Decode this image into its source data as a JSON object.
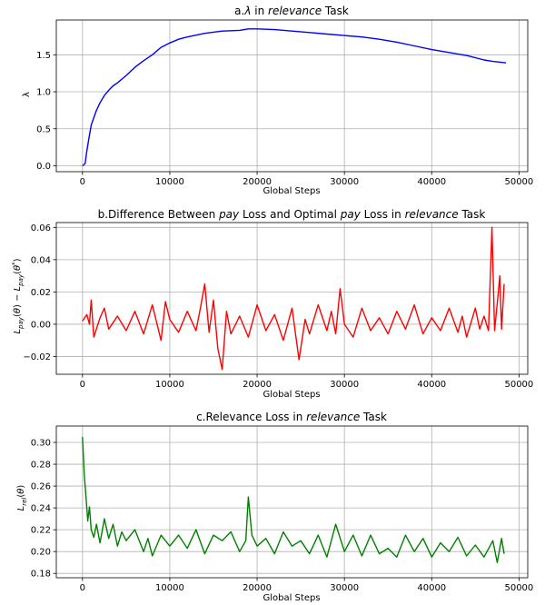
{
  "chart_data": [
    {
      "type": "line",
      "title": {
        "prefix": "a.",
        "symbol": "λ",
        "middle": " in ",
        "task": "relevance",
        "suffix": " Task"
      },
      "xlabel": "Global Steps",
      "ylabel": "λ",
      "xlim": [
        -3000,
        51000
      ],
      "ylim": [
        -0.08,
        1.97
      ],
      "xticks": [
        0,
        10000,
        20000,
        30000,
        40000,
        50000
      ],
      "yticks": [
        0.0,
        0.5,
        1.0,
        1.5
      ],
      "ytick_decimals": 1,
      "grid": true,
      "color": "#0000ff",
      "x": [
        0,
        300,
        500,
        700,
        1000,
        1300,
        1600,
        2000,
        2500,
        3000,
        3500,
        4000,
        5000,
        6000,
        7000,
        8000,
        9000,
        10000,
        11000,
        12000,
        14000,
        16000,
        18000,
        19000,
        20000,
        22000,
        24000,
        26000,
        28000,
        30000,
        32000,
        34000,
        36000,
        38000,
        40000,
        42000,
        44000,
        46000,
        47000,
        48500
      ],
      "y": [
        0.0,
        0.03,
        0.2,
        0.35,
        0.55,
        0.65,
        0.75,
        0.85,
        0.95,
        1.02,
        1.08,
        1.12,
        1.22,
        1.33,
        1.42,
        1.5,
        1.6,
        1.66,
        1.71,
        1.74,
        1.79,
        1.82,
        1.83,
        1.85,
        1.85,
        1.84,
        1.82,
        1.8,
        1.78,
        1.76,
        1.74,
        1.71,
        1.67,
        1.62,
        1.57,
        1.53,
        1.49,
        1.43,
        1.41,
        1.39
      ]
    },
    {
      "type": "line",
      "title": {
        "prefix": "b.Difference Between ",
        "pay1": "pay",
        "middle1": " Loss and Optimal ",
        "pay2": "pay",
        "middle2": " Loss in ",
        "task": "relevance",
        "suffix": " Task"
      },
      "xlabel": "Global Steps",
      "ylabel": "L_pay(θ) − L_pay(θ*)",
      "xlim": [
        -3000,
        51000
      ],
      "ylim": [
        -0.031,
        0.063
      ],
      "xticks": [
        0,
        10000,
        20000,
        30000,
        40000,
        50000
      ],
      "yticks": [
        -0.02,
        0.0,
        0.02,
        0.04,
        0.06
      ],
      "ytick_decimals": 2,
      "grid": true,
      "color": "#ff0000",
      "x": [
        0,
        500,
        800,
        1000,
        1300,
        2000,
        2500,
        3000,
        4000,
        5000,
        6000,
        7000,
        8000,
        9000,
        9500,
        10000,
        11000,
        12000,
        13000,
        13500,
        14000,
        14500,
        15000,
        15500,
        16000,
        16500,
        17000,
        18000,
        19000,
        20000,
        21000,
        22000,
        23000,
        24000,
        24800,
        25500,
        26000,
        27000,
        28000,
        28500,
        29000,
        29500,
        30000,
        31000,
        32000,
        33000,
        34000,
        35000,
        36000,
        37000,
        38000,
        39000,
        40000,
        41000,
        42000,
        43000,
        43500,
        44000,
        45000,
        45500,
        46000,
        46500,
        46900,
        47200,
        47600,
        47800,
        48000,
        48300
      ],
      "y": [
        0.002,
        0.006,
        0.0,
        0.015,
        -0.008,
        0.004,
        0.01,
        -0.003,
        0.005,
        -0.004,
        0.008,
        -0.006,
        0.012,
        -0.01,
        0.014,
        0.003,
        -0.005,
        0.008,
        -0.004,
        0.01,
        0.025,
        -0.005,
        0.015,
        -0.015,
        -0.028,
        0.008,
        -0.006,
        0.005,
        -0.008,
        0.012,
        -0.004,
        0.006,
        -0.01,
        0.01,
        -0.022,
        0.003,
        -0.006,
        0.012,
        -0.004,
        0.008,
        -0.006,
        0.022,
        0.0,
        -0.008,
        0.01,
        -0.004,
        0.004,
        -0.006,
        0.008,
        -0.003,
        0.012,
        -0.006,
        0.004,
        -0.004,
        0.01,
        -0.005,
        0.005,
        -0.008,
        0.01,
        -0.003,
        0.005,
        -0.004,
        0.06,
        -0.004,
        0.018,
        0.03,
        -0.003,
        0.025
      ]
    },
    {
      "type": "line",
      "title": {
        "prefix": "c.Relevance Loss in ",
        "task": "relevance",
        "suffix": " Task"
      },
      "xlabel": "Global Steps",
      "ylabel": "L_rel(θ)",
      "xlim": [
        -3000,
        51000
      ],
      "ylim": [
        0.176,
        0.315
      ],
      "xticks": [
        0,
        10000,
        20000,
        30000,
        40000,
        50000
      ],
      "yticks": [
        0.18,
        0.2,
        0.22,
        0.24,
        0.26,
        0.28,
        0.3
      ],
      "ytick_decimals": 2,
      "grid": true,
      "color": "#008000",
      "x": [
        0,
        200,
        400,
        600,
        800,
        1000,
        1300,
        1600,
        2000,
        2500,
        3000,
        3500,
        4000,
        4500,
        5000,
        6000,
        7000,
        7500,
        8000,
        9000,
        10000,
        11000,
        12000,
        13000,
        14000,
        15000,
        16000,
        17000,
        18000,
        18700,
        19000,
        19400,
        20000,
        21000,
        22000,
        23000,
        24000,
        25000,
        26000,
        27000,
        28000,
        29000,
        30000,
        31000,
        32000,
        33000,
        34000,
        35000,
        36000,
        37000,
        38000,
        39000,
        40000,
        41000,
        42000,
        43000,
        44000,
        45000,
        46000,
        47000,
        47500,
        48000,
        48300
      ],
      "y": [
        0.305,
        0.27,
        0.25,
        0.228,
        0.241,
        0.22,
        0.213,
        0.225,
        0.208,
        0.23,
        0.212,
        0.225,
        0.205,
        0.218,
        0.21,
        0.22,
        0.2,
        0.212,
        0.196,
        0.215,
        0.205,
        0.215,
        0.203,
        0.22,
        0.198,
        0.215,
        0.21,
        0.218,
        0.2,
        0.21,
        0.25,
        0.215,
        0.205,
        0.212,
        0.198,
        0.218,
        0.205,
        0.21,
        0.198,
        0.215,
        0.195,
        0.225,
        0.2,
        0.215,
        0.196,
        0.215,
        0.198,
        0.203,
        0.195,
        0.215,
        0.2,
        0.212,
        0.195,
        0.208,
        0.2,
        0.213,
        0.196,
        0.206,
        0.195,
        0.21,
        0.19,
        0.212,
        0.198
      ]
    }
  ]
}
